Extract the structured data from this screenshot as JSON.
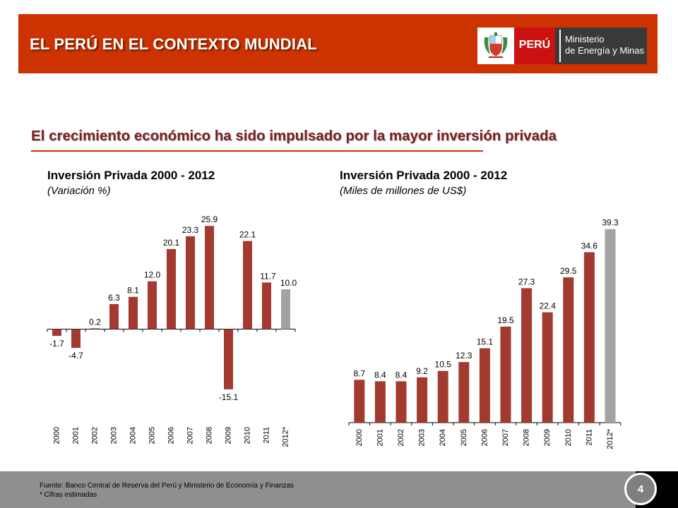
{
  "header": {
    "title": "EL PERÚ EN EL CONTEXTO MUNDIAL",
    "logo": {
      "country": "PERÚ",
      "ministry_line1": "Ministerio",
      "ministry_line2": "de Energía y Minas"
    }
  },
  "subtitle": "El crecimiento económico ha sido impulsado por la mayor inversión privada",
  "chart_data": [
    {
      "type": "bar",
      "title": "Inversión Privada 2000 - 2012",
      "subtitle": "(Variación %)",
      "categories": [
        "2000",
        "2001",
        "2002",
        "2003",
        "2004",
        "2005",
        "2006",
        "2007",
        "2008",
        "2009",
        "2010",
        "2011",
        "2012*"
      ],
      "values": [
        -1.7,
        -4.7,
        0.2,
        6.3,
        8.1,
        12.0,
        20.1,
        23.3,
        25.9,
        -15.1,
        22.1,
        11.7,
        10.0
      ],
      "value_labels": [
        "-1.7",
        "-4.7",
        "0.2",
        "6.3",
        "8.1",
        "12.0",
        "20.1",
        "23.3",
        "25.9",
        "-15.1",
        "22.1",
        "11.7",
        "10.0"
      ],
      "estimated": [
        false,
        false,
        false,
        false,
        false,
        false,
        false,
        false,
        false,
        false,
        false,
        false,
        true
      ],
      "ylim": [
        -17,
        28
      ],
      "colors": {
        "bar": "#a33a30",
        "estimated": "#a3a3a3"
      }
    },
    {
      "type": "bar",
      "title": "Inversión Privada 2000 - 2012",
      "subtitle": "(Miles de millones de US$)",
      "categories": [
        "2000",
        "2001",
        "2002",
        "2003",
        "2004",
        "2005",
        "2006",
        "2007",
        "2008",
        "2009",
        "2010",
        "2011",
        "2012*"
      ],
      "values": [
        8.7,
        8.4,
        8.4,
        9.2,
        10.5,
        12.3,
        15.1,
        19.5,
        27.3,
        22.4,
        29.5,
        34.6,
        39.3
      ],
      "value_labels": [
        "8.7",
        "8.4",
        "8.4",
        "9.2",
        "10.5",
        "12.3",
        "15.1",
        "19.5",
        "27.3",
        "22.4",
        "29.5",
        "34.6",
        "39.3"
      ],
      "estimated": [
        false,
        false,
        false,
        false,
        false,
        false,
        false,
        false,
        false,
        false,
        false,
        false,
        true
      ],
      "ylim": [
        0,
        40
      ],
      "colors": {
        "bar": "#a33a30",
        "estimated": "#a3a3a3"
      }
    }
  ],
  "footer": {
    "source_line1": "Fuente: Banco Central de Reserva del Perú y Ministerio de Economía y Finanzas",
    "source_line2": "* Cifras estimadas",
    "page_number": "4"
  },
  "colors": {
    "header": "#cc3300",
    "subtitle": "#7a1f1f",
    "footer": "#8f8f8f"
  }
}
